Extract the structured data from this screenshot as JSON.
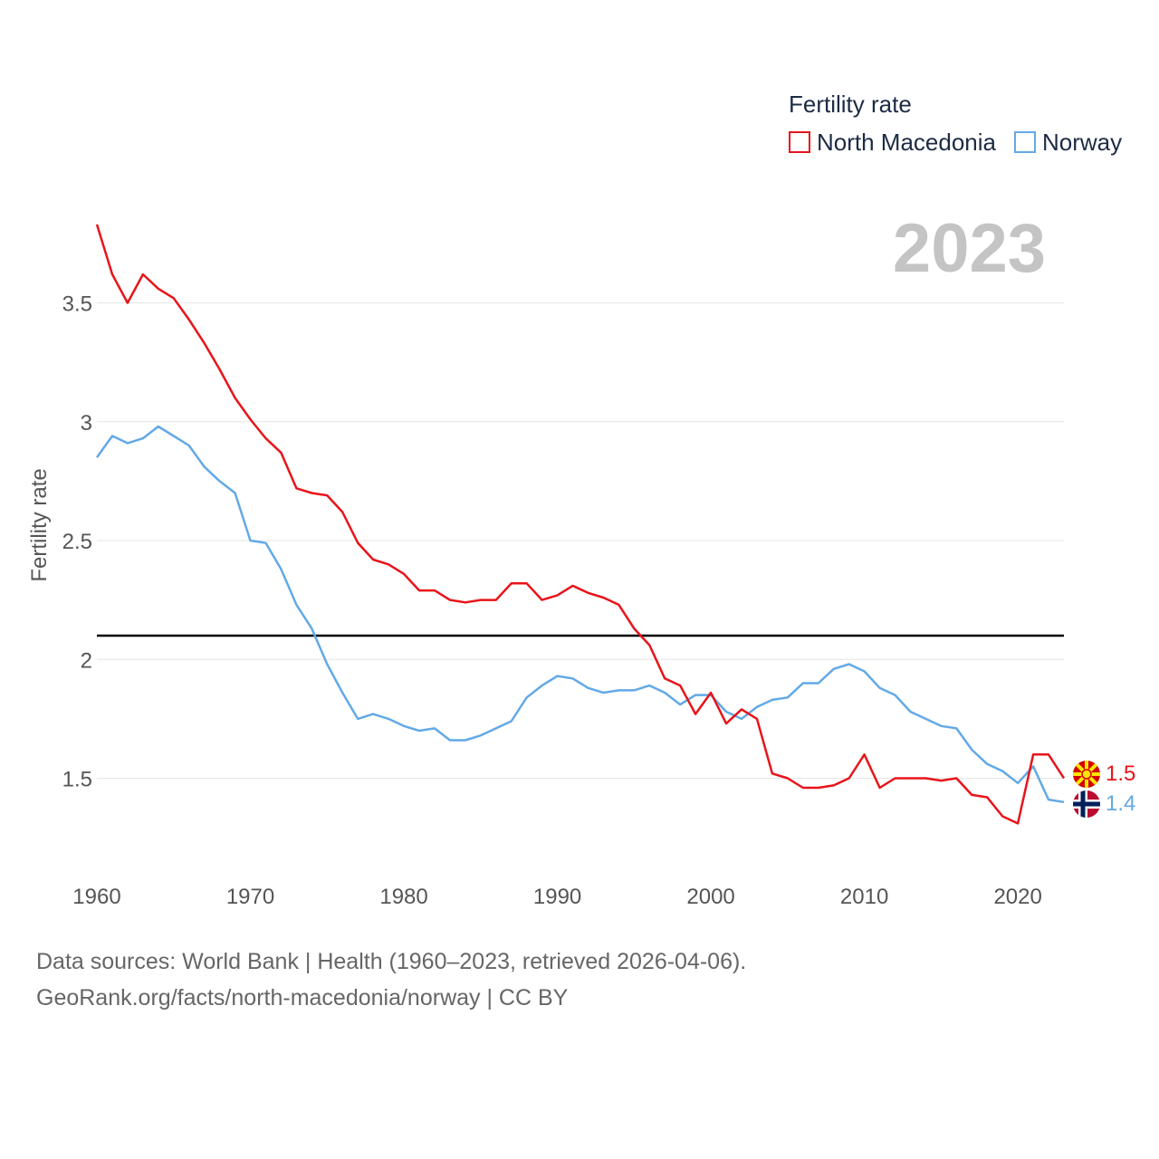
{
  "legend": {
    "title": "Fertility rate",
    "items": [
      {
        "name": "North Macedonia",
        "color": "#e8141a"
      },
      {
        "name": "Norway",
        "color": "#63a9e6"
      }
    ]
  },
  "year_display": "2023",
  "end_labels": {
    "north_macedonia": "1.5",
    "norway": "1.4"
  },
  "source": {
    "line1": "Data sources: World Bank | Health (1960–2023, retrieved 2026-04-06).",
    "line2": "GeoRank.org/facts/north-macedonia/norway | CC BY"
  },
  "chart_data": {
    "type": "line",
    "title": "Fertility rate",
    "xlabel": "",
    "ylabel": "Fertility rate",
    "xlim": [
      1960,
      2023
    ],
    "ylim": [
      1.2,
      3.9
    ],
    "x_ticks": [
      1960,
      1970,
      1980,
      1990,
      2000,
      2010,
      2020
    ],
    "y_ticks": [
      1.5,
      2,
      2.5,
      3,
      3.5
    ],
    "y_tick_labels": [
      "1.5",
      "2",
      "2.5",
      "3",
      "3.5"
    ],
    "reference_line": {
      "y": 2.1,
      "color": "#000000"
    },
    "x": [
      1960,
      1961,
      1962,
      1963,
      1964,
      1965,
      1966,
      1967,
      1968,
      1969,
      1970,
      1971,
      1972,
      1973,
      1974,
      1975,
      1976,
      1977,
      1978,
      1979,
      1980,
      1981,
      1982,
      1983,
      1984,
      1985,
      1986,
      1987,
      1988,
      1989,
      1990,
      1991,
      1992,
      1993,
      1994,
      1995,
      1996,
      1997,
      1998,
      1999,
      2000,
      2001,
      2002,
      2003,
      2004,
      2005,
      2006,
      2007,
      2008,
      2009,
      2010,
      2011,
      2012,
      2013,
      2014,
      2015,
      2016,
      2017,
      2018,
      2019,
      2020,
      2021,
      2022,
      2023
    ],
    "series": [
      {
        "name": "North Macedonia",
        "color": "#e8141a",
        "values": [
          3.83,
          3.62,
          3.5,
          3.62,
          3.56,
          3.52,
          3.43,
          3.33,
          3.22,
          3.1,
          3.01,
          2.93,
          2.87,
          2.72,
          2.7,
          2.69,
          2.62,
          2.49,
          2.42,
          2.4,
          2.36,
          2.29,
          2.29,
          2.25,
          2.24,
          2.25,
          2.25,
          2.32,
          2.32,
          2.25,
          2.27,
          2.31,
          2.28,
          2.26,
          2.23,
          2.13,
          2.06,
          1.92,
          1.89,
          1.77,
          1.86,
          1.73,
          1.79,
          1.75,
          1.52,
          1.5,
          1.46,
          1.46,
          1.47,
          1.5,
          1.6,
          1.46,
          1.5,
          1.5,
          1.5,
          1.49,
          1.5,
          1.43,
          1.42,
          1.34,
          1.31,
          1.6,
          1.6,
          1.5
        ]
      },
      {
        "name": "Norway",
        "color": "#63a9e6",
        "values": [
          2.85,
          2.94,
          2.91,
          2.93,
          2.98,
          2.94,
          2.9,
          2.81,
          2.75,
          2.7,
          2.5,
          2.49,
          2.38,
          2.23,
          2.13,
          1.98,
          1.86,
          1.75,
          1.77,
          1.75,
          1.72,
          1.7,
          1.71,
          1.66,
          1.66,
          1.68,
          1.71,
          1.74,
          1.84,
          1.89,
          1.93,
          1.92,
          1.88,
          1.86,
          1.87,
          1.87,
          1.89,
          1.86,
          1.81,
          1.85,
          1.85,
          1.78,
          1.75,
          1.8,
          1.83,
          1.84,
          1.9,
          1.9,
          1.96,
          1.98,
          1.95,
          1.88,
          1.85,
          1.78,
          1.75,
          1.72,
          1.71,
          1.62,
          1.56,
          1.53,
          1.48,
          1.55,
          1.41,
          1.4
        ]
      }
    ]
  }
}
